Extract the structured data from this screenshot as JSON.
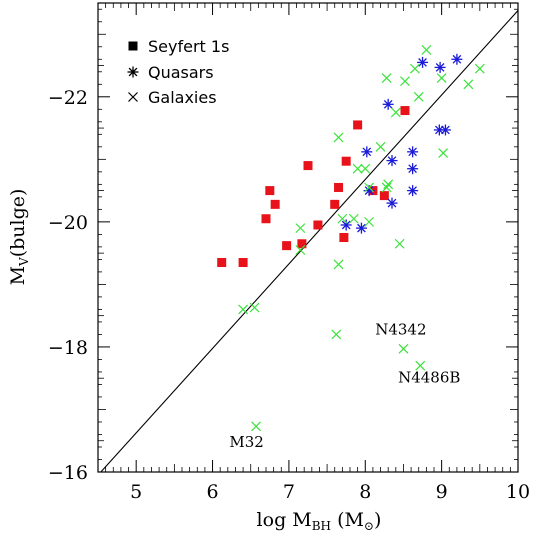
{
  "chart_data": {
    "type": "scatter",
    "xlabel": "log M_BH (M_⊙)",
    "xlabel_parts": {
      "main": "log M",
      "sub": "BH",
      "unit_open": " (M",
      "unit_sub": "⊙",
      "unit_close": ")"
    },
    "ylabel": "M_V(bulge)",
    "ylabel_parts": {
      "main": "M",
      "sub": "V",
      "rest": "(bulge)"
    },
    "xlim": [
      4.5,
      10
    ],
    "ylim": [
      -16,
      -23.5
    ],
    "y_axis_inverted": true,
    "x_ticks": [
      5,
      6,
      7,
      8,
      9,
      10
    ],
    "y_ticks": [
      -16,
      -18,
      -20,
      -22
    ],
    "x_tick_labels": [
      "5",
      "6",
      "7",
      "8",
      "9",
      "10"
    ],
    "y_tick_labels": [
      "−16",
      "−18",
      "−20",
      "−22"
    ],
    "legend_position": "top-left",
    "grid": false,
    "series": [
      {
        "name": "Seyfert 1s",
        "marker": "square",
        "color": "#e8131a",
        "points": [
          [
            6.12,
            -19.35
          ],
          [
            6.4,
            -19.35
          ],
          [
            6.7,
            -20.05
          ],
          [
            6.75,
            -20.5
          ],
          [
            6.82,
            -20.28
          ],
          [
            6.97,
            -19.62
          ],
          [
            7.17,
            -19.65
          ],
          [
            7.25,
            -20.9
          ],
          [
            7.38,
            -19.95
          ],
          [
            7.6,
            -20.28
          ],
          [
            7.65,
            -20.55
          ],
          [
            7.72,
            -19.75
          ],
          [
            7.75,
            -20.97
          ],
          [
            7.9,
            -21.55
          ],
          [
            8.1,
            -20.5
          ],
          [
            8.25,
            -20.42
          ],
          [
            8.52,
            -21.78
          ]
        ]
      },
      {
        "name": "Quasars",
        "marker": "asterisk",
        "color": "#1a1ad8",
        "points": [
          [
            7.75,
            -19.95
          ],
          [
            7.95,
            -19.9
          ],
          [
            8.02,
            -21.12
          ],
          [
            8.05,
            -20.5
          ],
          [
            8.3,
            -21.88
          ],
          [
            8.35,
            -20.98
          ],
          [
            8.35,
            -20.3
          ],
          [
            8.62,
            -21.12
          ],
          [
            8.62,
            -20.85
          ],
          [
            8.62,
            -20.5
          ],
          [
            8.75,
            -22.55
          ],
          [
            8.97,
            -21.47
          ],
          [
            8.98,
            -22.47
          ],
          [
            9.05,
            -21.47
          ],
          [
            9.2,
            -22.6
          ]
        ]
      },
      {
        "name": "Galaxies",
        "marker": "cross",
        "color": "#3be33b",
        "points": [
          [
            6.4,
            -18.6
          ],
          [
            6.55,
            -18.63
          ],
          [
            6.57,
            -16.73
          ],
          [
            7.15,
            -19.9
          ],
          [
            7.15,
            -19.55
          ],
          [
            7.65,
            -21.35
          ],
          [
            7.65,
            -19.32
          ],
          [
            7.62,
            -18.2
          ],
          [
            7.7,
            -20.05
          ],
          [
            7.85,
            -20.05
          ],
          [
            7.9,
            -20.85
          ],
          [
            8.0,
            -20.85
          ],
          [
            8.05,
            -20.0
          ],
          [
            8.05,
            -20.55
          ],
          [
            8.2,
            -21.2
          ],
          [
            8.28,
            -20.55
          ],
          [
            8.3,
            -20.6
          ],
          [
            8.28,
            -22.3
          ],
          [
            8.4,
            -21.75
          ],
          [
            8.45,
            -19.65
          ],
          [
            8.5,
            -17.97
          ],
          [
            8.52,
            -22.25
          ],
          [
            8.65,
            -22.45
          ],
          [
            8.7,
            -22.0
          ],
          [
            8.72,
            -17.7
          ],
          [
            8.8,
            -22.75
          ],
          [
            9.0,
            -22.3
          ],
          [
            9.02,
            -21.1
          ],
          [
            9.35,
            -22.2
          ],
          [
            9.5,
            -22.45
          ]
        ]
      }
    ],
    "fit_line": {
      "x": [
        4.5,
        10
      ],
      "y": [
        -15.95,
        -23.38
      ]
    },
    "annotations": [
      {
        "text": "N4342",
        "x": 8.13,
        "y": -18.2
      },
      {
        "text": "N4486B",
        "x": 8.43,
        "y": -17.43
      },
      {
        "text": "M32",
        "x": 6.22,
        "y": -16.4
      }
    ]
  }
}
